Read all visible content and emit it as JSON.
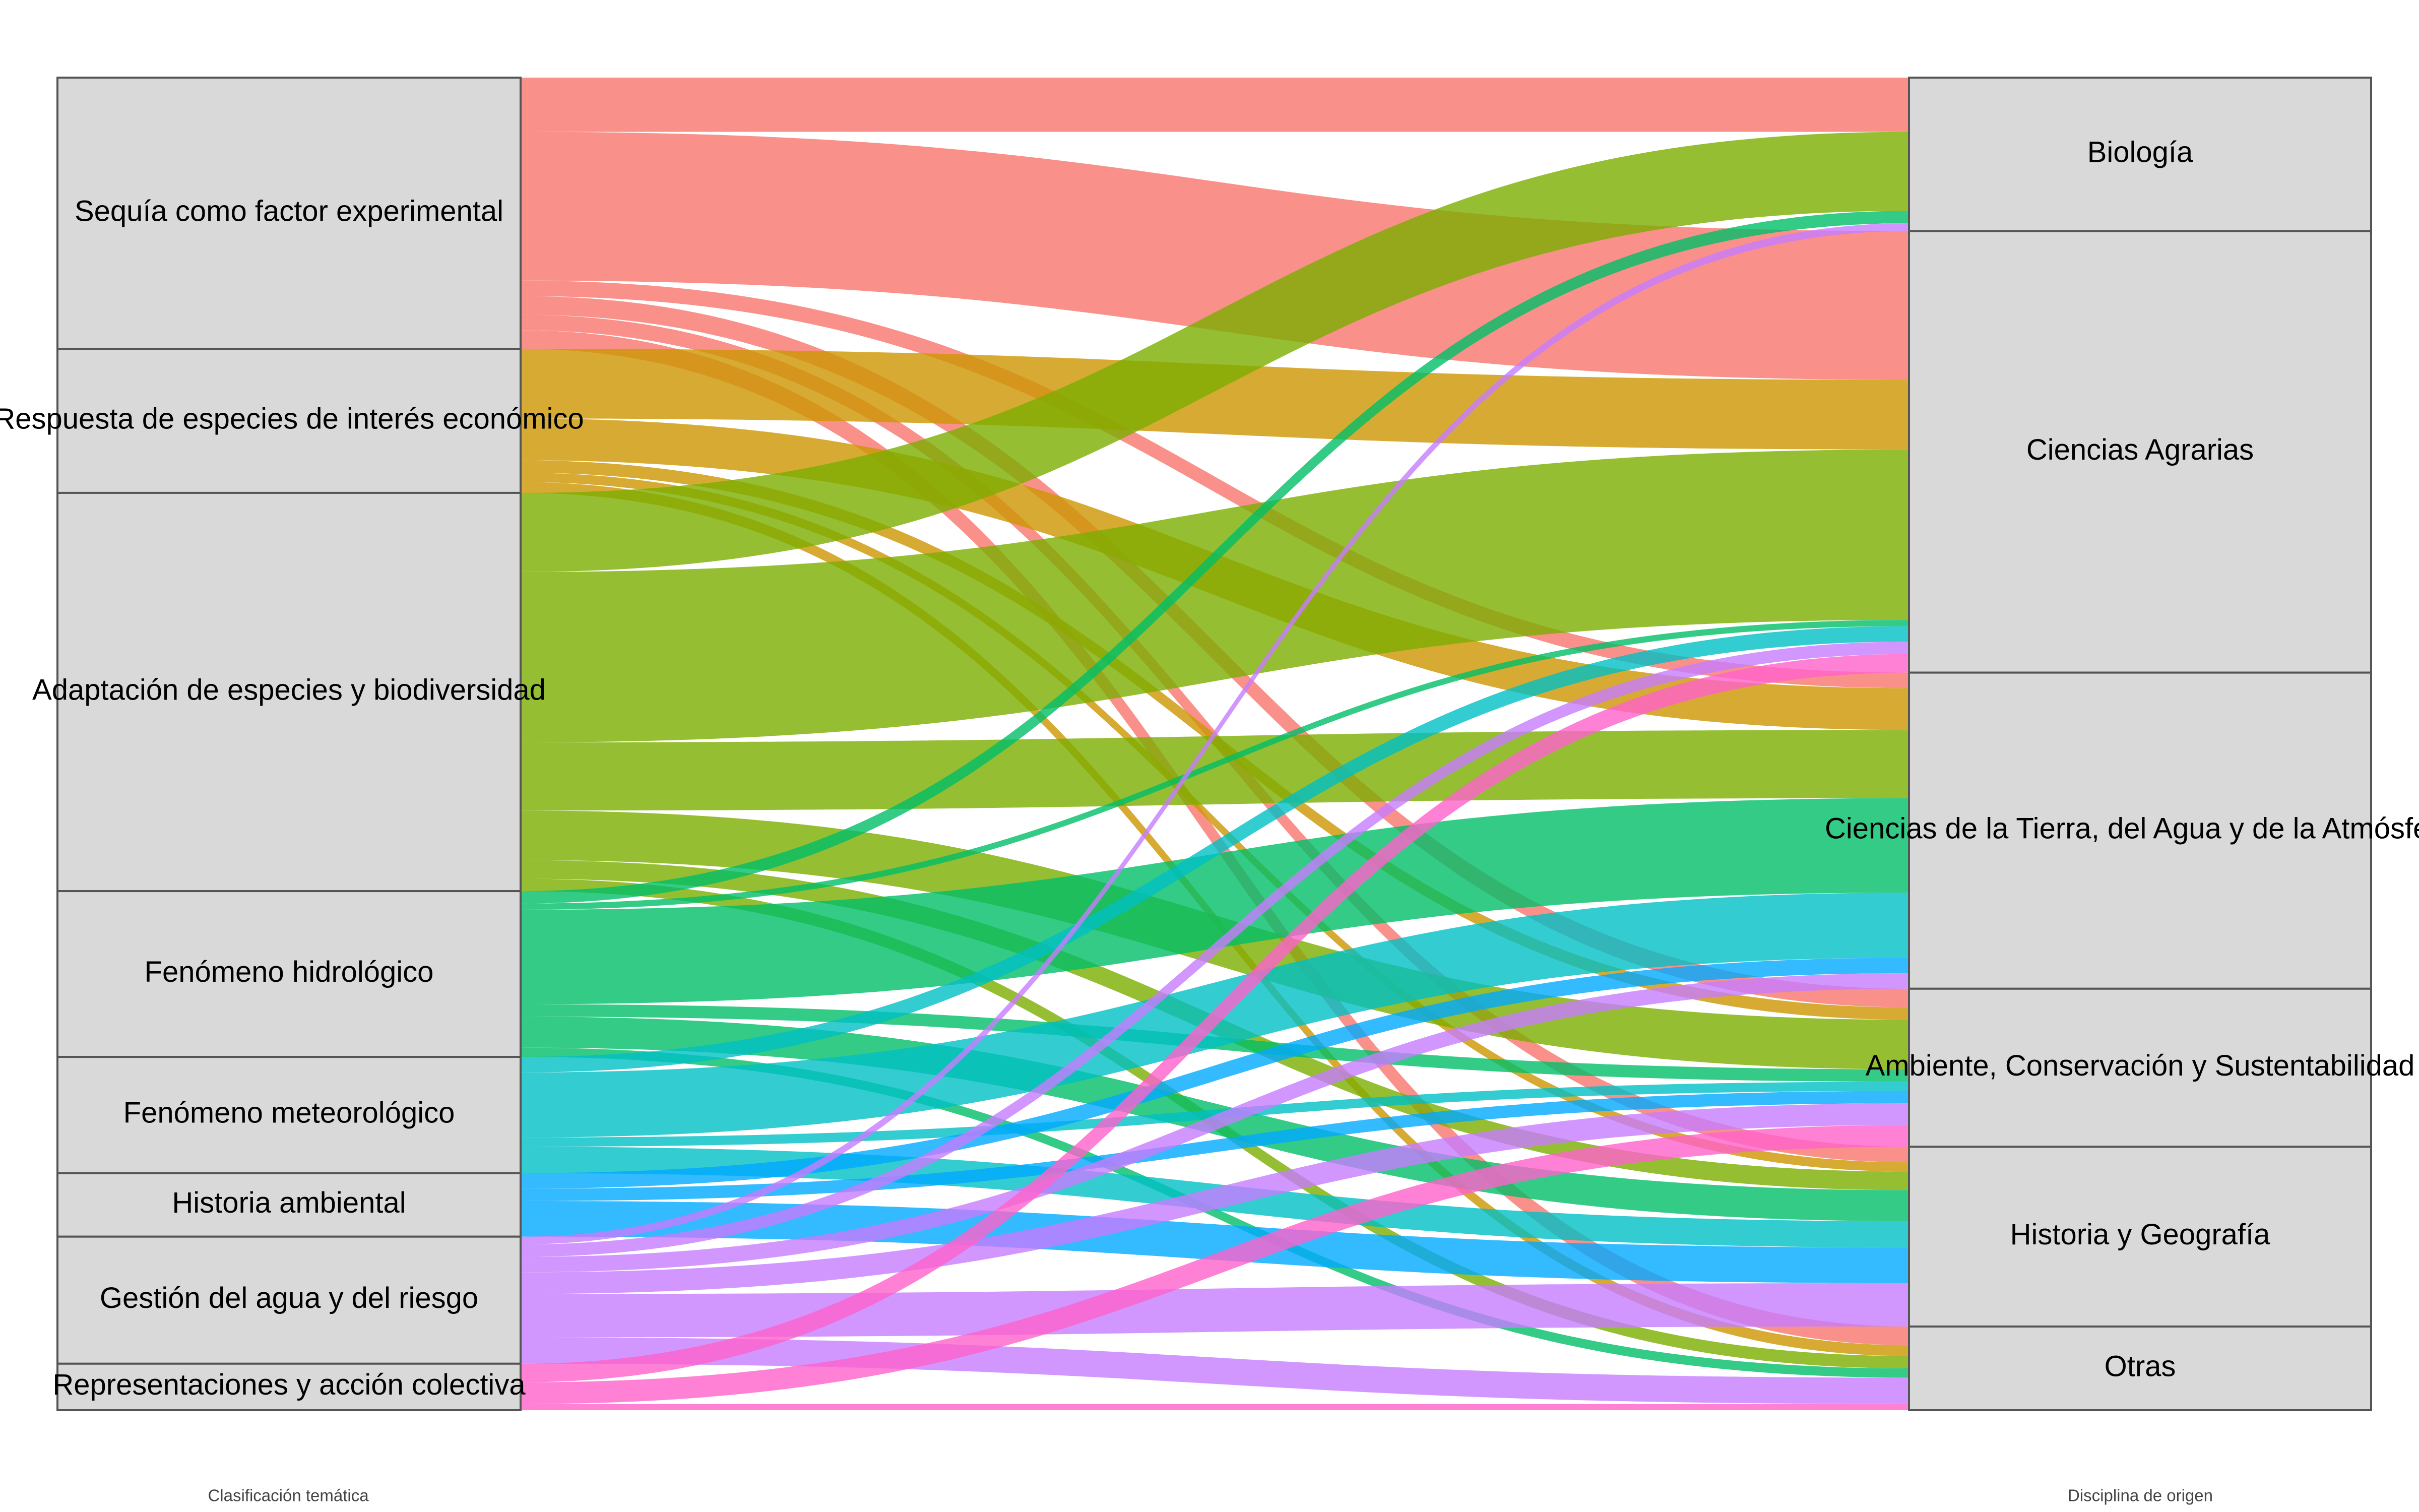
{
  "chart_data": {
    "type": "sankey",
    "axis_labels": [
      "Clasificación temática",
      "Disciplina de origen"
    ],
    "targets": [
      "Biología",
      "Ciencias Agrarias",
      "Ciencias de la Tierra, del Agua y de la Atmósfera",
      "Ambiente, Conservación y Sustentabilidad",
      "Historia y Geografía",
      "Otras"
    ],
    "sources": [
      {
        "name": "Sequía como factor experimental",
        "color": "#F8766D",
        "values": [
          35,
          96,
          10,
          12,
          10,
          12
        ]
      },
      {
        "name": "Respuesta de especies de interés económico",
        "color": "#CD9600",
        "values": [
          0,
          45,
          27,
          8,
          6,
          7
        ]
      },
      {
        "name": "Adaptación de especies y biodiversidad",
        "color": "#7CAE00",
        "values": [
          51,
          110,
          44,
          32,
          12,
          8
        ]
      },
      {
        "name": "Fenómeno hidrológico",
        "color": "#00BE67",
        "values": [
          8,
          4,
          61,
          8,
          20,
          6
        ]
      },
      {
        "name": "Fenómeno meteorológico",
        "color": "#00BFC4",
        "values": [
          0,
          10,
          42,
          6,
          17,
          0
        ]
      },
      {
        "name": "Historia ambiental",
        "color": "#00A9FF",
        "values": [
          0,
          0,
          10,
          8,
          23,
          0
        ]
      },
      {
        "name": "Gestión del agua y del riesgo",
        "color": "#C77CFF",
        "values": [
          5,
          8,
          10,
          14,
          28,
          17
        ]
      },
      {
        "name": "Representaciones y acción colectiva",
        "color": "#FF61CC",
        "values": [
          0,
          12,
          0,
          14,
          0,
          4
        ]
      }
    ],
    "node_color": "#d9d9d9",
    "flow_opacity": 0.8
  }
}
